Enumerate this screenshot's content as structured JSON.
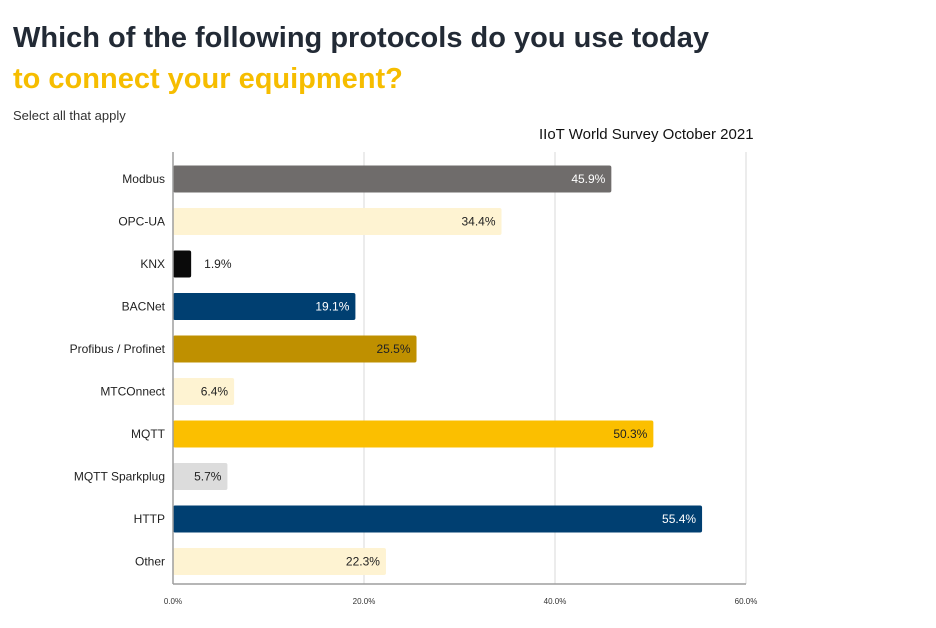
{
  "header": {
    "title_line1": "Which of the following protocols do you use today",
    "title_line2": "to connect your equipment?",
    "subtitle": "Select all that apply",
    "source": "IIoT World Survey October 2021"
  },
  "colors": {
    "title": "#222a35",
    "accent": "#f6bd00",
    "grid": "#d9d9d9",
    "axis": "#9e9e9e"
  },
  "chart_data": {
    "type": "bar",
    "orientation": "horizontal",
    "categories": [
      "Modbus",
      "OPC-UA",
      "KNX",
      "BACNet",
      "Profibus / Profinet",
      "MTCOnnect",
      "MQTT",
      "MQTT Sparkplug",
      "HTTP",
      "Other"
    ],
    "values": [
      45.9,
      34.4,
      1.9,
      19.1,
      25.5,
      6.4,
      50.3,
      5.7,
      55.4,
      22.3
    ],
    "value_labels": [
      "45.9%",
      "34.4%",
      "1.9%",
      "19.1%",
      "25.5%",
      "6.4%",
      "50.3%",
      "5.7%",
      "55.4%",
      "22.3%"
    ],
    "bar_colors": [
      "#6f6c6b",
      "#fef3d2",
      "#0a0a0a",
      "#003f71",
      "#bf9000",
      "#fef3d2",
      "#fbbf00",
      "#dcdcdc",
      "#003f71",
      "#fef3d2"
    ],
    "label_colors": [
      "#ffffff",
      "#222222",
      "#222222",
      "#ffffff",
      "#222222",
      "#222222",
      "#222222",
      "#222222",
      "#ffffff",
      "#222222"
    ],
    "label_inside": [
      true,
      true,
      false,
      true,
      true,
      true,
      true,
      true,
      true,
      true
    ],
    "xlim": [
      0,
      60
    ],
    "xticks": [
      0,
      20,
      40,
      60
    ],
    "xtick_labels": [
      "0.0%",
      "20.0%",
      "40.0%",
      "60.0%"
    ],
    "title": "Which of the following protocols do you use today to connect your equipment?",
    "xlabel": "",
    "ylabel": "",
    "grid": true
  }
}
